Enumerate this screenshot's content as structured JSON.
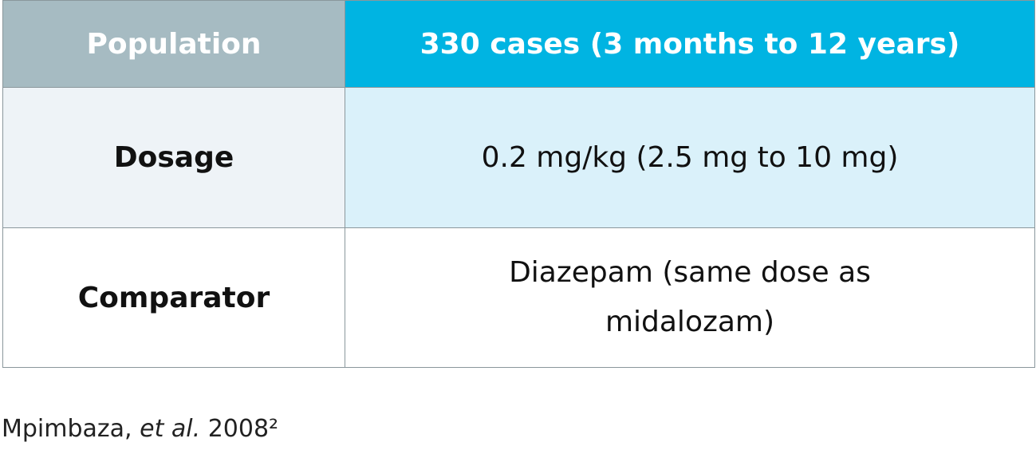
{
  "table": {
    "header": [
      "Population",
      "330 cases (3 months to 12 years)"
    ],
    "rows": [
      [
        "Dosage",
        "0.2 mg/kg (2.5 mg to 10 mg)"
      ],
      [
        "Comparator",
        "Diazepam (same dose as midalozam)"
      ]
    ]
  },
  "citation": {
    "authors": "Mpimbaza,",
    "etal": "et al.",
    "year": "2008²"
  }
}
